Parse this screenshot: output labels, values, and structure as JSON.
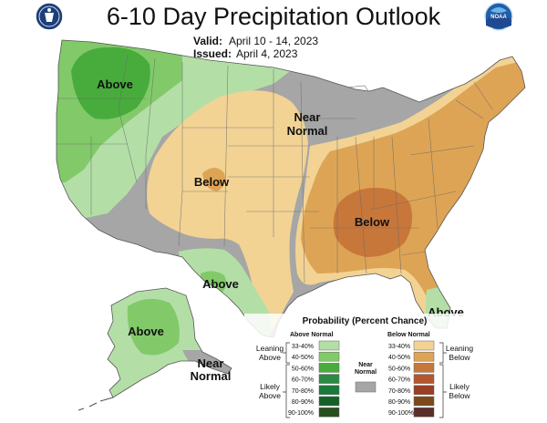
{
  "header": {
    "title": "6-10 Day Precipitation Outlook",
    "valid_label": "Valid:",
    "valid_value": "April 10 - 14, 2023",
    "issued_label": "Issued:",
    "issued_value": "April 4, 2023"
  },
  "logos": {
    "left": "commerce-seal",
    "right": "noaa-logo",
    "right_text": "NOAA"
  },
  "regions": {
    "northwest_above": "Above",
    "north_near": "Near",
    "north_normal": "Normal",
    "central_below": "Below",
    "southeast_below": "Below",
    "texas_above": "Above",
    "florida_above": "Above",
    "alaska_above": "Above",
    "alaska_near": "Near",
    "alaska_normal": "Normal"
  },
  "legend": {
    "title": "Probability (Percent Chance)",
    "above_header": "Above Normal",
    "below_header": "Below Normal",
    "near_label_1": "Near",
    "near_label_2": "Normal",
    "near_color": "#a6a6a6",
    "leaning_above_1": "Leaning",
    "leaning_above_2": "Above",
    "likely_above_1": "Likely",
    "likely_above_2": "Above",
    "leaning_below_1": "Leaning",
    "leaning_below_2": "Below",
    "likely_below_1": "Likely",
    "likely_below_2": "Below",
    "above_bins": [
      {
        "label": "33-40%",
        "color": "#b3dfa7"
      },
      {
        "label": "40-50%",
        "color": "#82c96a"
      },
      {
        "label": "50-60%",
        "color": "#48ac3c"
      },
      {
        "label": "60-70%",
        "color": "#2d8a43"
      },
      {
        "label": "70-80%",
        "color": "#1a7a3b"
      },
      {
        "label": "80-90%",
        "color": "#156028"
      },
      {
        "label": "90-100%",
        "color": "#274f1b"
      }
    ],
    "below_bins": [
      {
        "label": "33-40%",
        "color": "#f2d394"
      },
      {
        "label": "40-50%",
        "color": "#dea455"
      },
      {
        "label": "50-60%",
        "color": "#c8773a"
      },
      {
        "label": "60-70%",
        "color": "#b4562f"
      },
      {
        "label": "70-80%",
        "color": "#9a3e26"
      },
      {
        "label": "80-90%",
        "color": "#7a4a1a"
      },
      {
        "label": "90-100%",
        "color": "#5a2e2a"
      }
    ]
  },
  "colors": {
    "near_normal": "#a6a6a6",
    "above_33_40": "#b3dfa7",
    "above_40_50": "#82c96a",
    "above_50_60": "#48ac3c",
    "below_33_40": "#f2d394",
    "below_40_50": "#dea455",
    "below_50_60": "#c8773a"
  }
}
